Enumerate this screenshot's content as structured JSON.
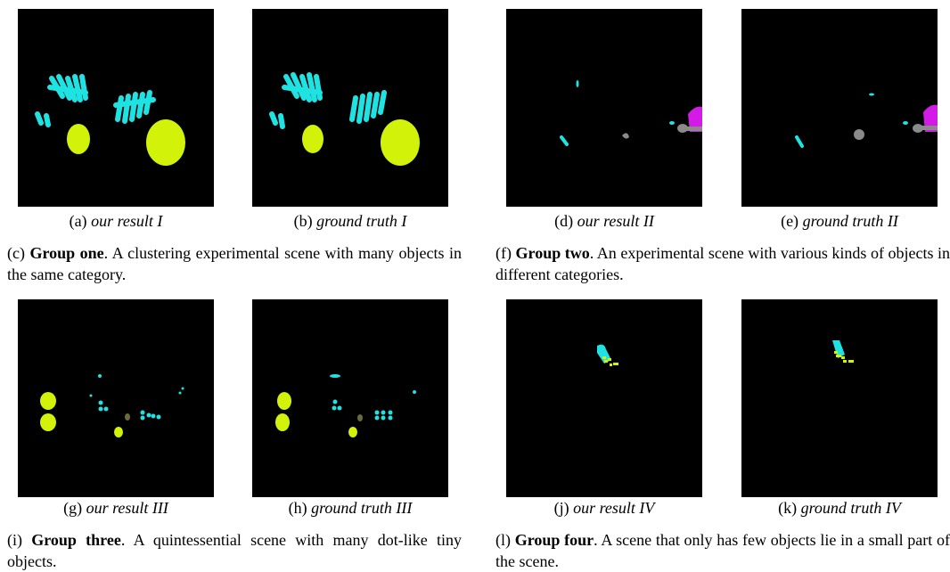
{
  "groups": [
    {
      "panels": [
        {
          "label": "(a)",
          "caption": "our result I"
        },
        {
          "label": "(b)",
          "caption": "ground truth I"
        }
      ],
      "caption": {
        "label": "(c)",
        "bold": "Group one",
        "text": ". A clustering experimental scene with many objects in the same category."
      }
    },
    {
      "panels": [
        {
          "label": "(d)",
          "caption": "our result II"
        },
        {
          "label": "(e)",
          "caption": "ground truth II"
        }
      ],
      "caption": {
        "label": "(f)",
        "bold": "Group two",
        "text": ". An experimental scene with various kinds of objects in different categories."
      }
    },
    {
      "panels": [
        {
          "label": "(g)",
          "caption": "our result III"
        },
        {
          "label": "(h)",
          "caption": "ground truth III"
        }
      ],
      "caption": {
        "label": "(i)",
        "bold": "Group three",
        "text": ". A quintessential scene with many dot-like tiny objects."
      }
    },
    {
      "panels": [
        {
          "label": "(j)",
          "caption": "our result IV"
        },
        {
          "label": "(k)",
          "caption": "ground truth IV"
        }
      ],
      "caption": {
        "label": "(l)",
        "bold": "Group four",
        "text": ". A scene that only has few objects lie in a small part of the scene."
      }
    }
  ]
}
